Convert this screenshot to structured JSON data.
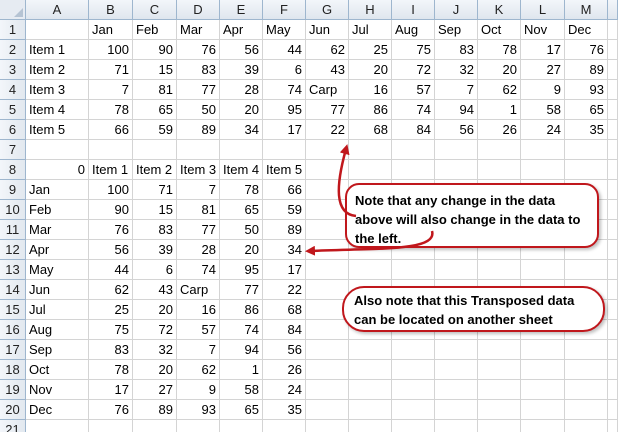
{
  "columns": [
    "A",
    "B",
    "C",
    "D",
    "E",
    "F",
    "G",
    "H",
    "I",
    "J",
    "K",
    "L",
    "M"
  ],
  "rows": [
    "1",
    "2",
    "3",
    "4",
    "5",
    "6",
    "7",
    "8",
    "9",
    "10",
    "11",
    "12",
    "13",
    "14",
    "15",
    "16",
    "17",
    "18",
    "19",
    "20",
    "21"
  ],
  "cells": [
    {
      "r": 1,
      "c": 1,
      "v": "Jan",
      "t": "s"
    },
    {
      "r": 1,
      "c": 2,
      "v": "Feb",
      "t": "s"
    },
    {
      "r": 1,
      "c": 3,
      "v": "Mar",
      "t": "s"
    },
    {
      "r": 1,
      "c": 4,
      "v": "Apr",
      "t": "s"
    },
    {
      "r": 1,
      "c": 5,
      "v": "May",
      "t": "s"
    },
    {
      "r": 1,
      "c": 6,
      "v": "Jun",
      "t": "s"
    },
    {
      "r": 1,
      "c": 7,
      "v": "Jul",
      "t": "s"
    },
    {
      "r": 1,
      "c": 8,
      "v": "Aug",
      "t": "s"
    },
    {
      "r": 1,
      "c": 9,
      "v": "Sep",
      "t": "s"
    },
    {
      "r": 1,
      "c": 10,
      "v": "Oct",
      "t": "s"
    },
    {
      "r": 1,
      "c": 11,
      "v": "Nov",
      "t": "s"
    },
    {
      "r": 1,
      "c": 12,
      "v": "Dec",
      "t": "s"
    },
    {
      "r": 2,
      "c": 0,
      "v": "Item 1",
      "t": "s"
    },
    {
      "r": 2,
      "c": 1,
      "v": "100",
      "t": "n"
    },
    {
      "r": 2,
      "c": 2,
      "v": "90",
      "t": "n"
    },
    {
      "r": 2,
      "c": 3,
      "v": "76",
      "t": "n"
    },
    {
      "r": 2,
      "c": 4,
      "v": "56",
      "t": "n"
    },
    {
      "r": 2,
      "c": 5,
      "v": "44",
      "t": "n"
    },
    {
      "r": 2,
      "c": 6,
      "v": "62",
      "t": "n"
    },
    {
      "r": 2,
      "c": 7,
      "v": "25",
      "t": "n"
    },
    {
      "r": 2,
      "c": 8,
      "v": "75",
      "t": "n"
    },
    {
      "r": 2,
      "c": 9,
      "v": "83",
      "t": "n"
    },
    {
      "r": 2,
      "c": 10,
      "v": "78",
      "t": "n"
    },
    {
      "r": 2,
      "c": 11,
      "v": "17",
      "t": "n"
    },
    {
      "r": 2,
      "c": 12,
      "v": "76",
      "t": "n"
    },
    {
      "r": 3,
      "c": 0,
      "v": "Item 2",
      "t": "s"
    },
    {
      "r": 3,
      "c": 1,
      "v": "71",
      "t": "n"
    },
    {
      "r": 3,
      "c": 2,
      "v": "15",
      "t": "n"
    },
    {
      "r": 3,
      "c": 3,
      "v": "83",
      "t": "n"
    },
    {
      "r": 3,
      "c": 4,
      "v": "39",
      "t": "n"
    },
    {
      "r": 3,
      "c": 5,
      "v": "6",
      "t": "n"
    },
    {
      "r": 3,
      "c": 6,
      "v": "43",
      "t": "n"
    },
    {
      "r": 3,
      "c": 7,
      "v": "20",
      "t": "n"
    },
    {
      "r": 3,
      "c": 8,
      "v": "72",
      "t": "n"
    },
    {
      "r": 3,
      "c": 9,
      "v": "32",
      "t": "n"
    },
    {
      "r": 3,
      "c": 10,
      "v": "20",
      "t": "n"
    },
    {
      "r": 3,
      "c": 11,
      "v": "27",
      "t": "n"
    },
    {
      "r": 3,
      "c": 12,
      "v": "89",
      "t": "n"
    },
    {
      "r": 4,
      "c": 0,
      "v": "Item 3",
      "t": "s"
    },
    {
      "r": 4,
      "c": 1,
      "v": "7",
      "t": "n"
    },
    {
      "r": 4,
      "c": 2,
      "v": "81",
      "t": "n"
    },
    {
      "r": 4,
      "c": 3,
      "v": "77",
      "t": "n"
    },
    {
      "r": 4,
      "c": 4,
      "v": "28",
      "t": "n"
    },
    {
      "r": 4,
      "c": 5,
      "v": "74",
      "t": "n"
    },
    {
      "r": 4,
      "c": 6,
      "v": "Carp",
      "t": "s"
    },
    {
      "r": 4,
      "c": 7,
      "v": "16",
      "t": "n"
    },
    {
      "r": 4,
      "c": 8,
      "v": "57",
      "t": "n"
    },
    {
      "r": 4,
      "c": 9,
      "v": "7",
      "t": "n"
    },
    {
      "r": 4,
      "c": 10,
      "v": "62",
      "t": "n"
    },
    {
      "r": 4,
      "c": 11,
      "v": "9",
      "t": "n"
    },
    {
      "r": 4,
      "c": 12,
      "v": "93",
      "t": "n"
    },
    {
      "r": 5,
      "c": 0,
      "v": "Item 4",
      "t": "s"
    },
    {
      "r": 5,
      "c": 1,
      "v": "78",
      "t": "n"
    },
    {
      "r": 5,
      "c": 2,
      "v": "65",
      "t": "n"
    },
    {
      "r": 5,
      "c": 3,
      "v": "50",
      "t": "n"
    },
    {
      "r": 5,
      "c": 4,
      "v": "20",
      "t": "n"
    },
    {
      "r": 5,
      "c": 5,
      "v": "95",
      "t": "n"
    },
    {
      "r": 5,
      "c": 6,
      "v": "77",
      "t": "n"
    },
    {
      "r": 5,
      "c": 7,
      "v": "86",
      "t": "n"
    },
    {
      "r": 5,
      "c": 8,
      "v": "74",
      "t": "n"
    },
    {
      "r": 5,
      "c": 9,
      "v": "94",
      "t": "n"
    },
    {
      "r": 5,
      "c": 10,
      "v": "1",
      "t": "n"
    },
    {
      "r": 5,
      "c": 11,
      "v": "58",
      "t": "n"
    },
    {
      "r": 5,
      "c": 12,
      "v": "65",
      "t": "n"
    },
    {
      "r": 6,
      "c": 0,
      "v": "Item 5",
      "t": "s"
    },
    {
      "r": 6,
      "c": 1,
      "v": "66",
      "t": "n"
    },
    {
      "r": 6,
      "c": 2,
      "v": "59",
      "t": "n"
    },
    {
      "r": 6,
      "c": 3,
      "v": "89",
      "t": "n"
    },
    {
      "r": 6,
      "c": 4,
      "v": "34",
      "t": "n"
    },
    {
      "r": 6,
      "c": 5,
      "v": "17",
      "t": "n"
    },
    {
      "r": 6,
      "c": 6,
      "v": "22",
      "t": "n"
    },
    {
      "r": 6,
      "c": 7,
      "v": "68",
      "t": "n"
    },
    {
      "r": 6,
      "c": 8,
      "v": "84",
      "t": "n"
    },
    {
      "r": 6,
      "c": 9,
      "v": "56",
      "t": "n"
    },
    {
      "r": 6,
      "c": 10,
      "v": "26",
      "t": "n"
    },
    {
      "r": 6,
      "c": 11,
      "v": "24",
      "t": "n"
    },
    {
      "r": 6,
      "c": 12,
      "v": "35",
      "t": "n"
    },
    {
      "r": 8,
      "c": 0,
      "v": "0",
      "t": "n"
    },
    {
      "r": 8,
      "c": 1,
      "v": "Item 1",
      "t": "s"
    },
    {
      "r": 8,
      "c": 2,
      "v": "Item 2",
      "t": "s"
    },
    {
      "r": 8,
      "c": 3,
      "v": "Item 3",
      "t": "s"
    },
    {
      "r": 8,
      "c": 4,
      "v": "Item 4",
      "t": "s"
    },
    {
      "r": 8,
      "c": 5,
      "v": "Item 5",
      "t": "s"
    },
    {
      "r": 9,
      "c": 0,
      "v": "Jan",
      "t": "s"
    },
    {
      "r": 9,
      "c": 1,
      "v": "100",
      "t": "n"
    },
    {
      "r": 9,
      "c": 2,
      "v": "71",
      "t": "n"
    },
    {
      "r": 9,
      "c": 3,
      "v": "7",
      "t": "n"
    },
    {
      "r": 9,
      "c": 4,
      "v": "78",
      "t": "n"
    },
    {
      "r": 9,
      "c": 5,
      "v": "66",
      "t": "n"
    },
    {
      "r": 10,
      "c": 0,
      "v": "Feb",
      "t": "s"
    },
    {
      "r": 10,
      "c": 1,
      "v": "90",
      "t": "n"
    },
    {
      "r": 10,
      "c": 2,
      "v": "15",
      "t": "n"
    },
    {
      "r": 10,
      "c": 3,
      "v": "81",
      "t": "n"
    },
    {
      "r": 10,
      "c": 4,
      "v": "65",
      "t": "n"
    },
    {
      "r": 10,
      "c": 5,
      "v": "59",
      "t": "n"
    },
    {
      "r": 11,
      "c": 0,
      "v": "Mar",
      "t": "s"
    },
    {
      "r": 11,
      "c": 1,
      "v": "76",
      "t": "n"
    },
    {
      "r": 11,
      "c": 2,
      "v": "83",
      "t": "n"
    },
    {
      "r": 11,
      "c": 3,
      "v": "77",
      "t": "n"
    },
    {
      "r": 11,
      "c": 4,
      "v": "50",
      "t": "n"
    },
    {
      "r": 11,
      "c": 5,
      "v": "89",
      "t": "n"
    },
    {
      "r": 12,
      "c": 0,
      "v": "Apr",
      "t": "s"
    },
    {
      "r": 12,
      "c": 1,
      "v": "56",
      "t": "n"
    },
    {
      "r": 12,
      "c": 2,
      "v": "39",
      "t": "n"
    },
    {
      "r": 12,
      "c": 3,
      "v": "28",
      "t": "n"
    },
    {
      "r": 12,
      "c": 4,
      "v": "20",
      "t": "n"
    },
    {
      "r": 12,
      "c": 5,
      "v": "34",
      "t": "n"
    },
    {
      "r": 13,
      "c": 0,
      "v": "May",
      "t": "s"
    },
    {
      "r": 13,
      "c": 1,
      "v": "44",
      "t": "n"
    },
    {
      "r": 13,
      "c": 2,
      "v": "6",
      "t": "n"
    },
    {
      "r": 13,
      "c": 3,
      "v": "74",
      "t": "n"
    },
    {
      "r": 13,
      "c": 4,
      "v": "95",
      "t": "n"
    },
    {
      "r": 13,
      "c": 5,
      "v": "17",
      "t": "n"
    },
    {
      "r": 14,
      "c": 0,
      "v": "Jun",
      "t": "s"
    },
    {
      "r": 14,
      "c": 1,
      "v": "62",
      "t": "n"
    },
    {
      "r": 14,
      "c": 2,
      "v": "43",
      "t": "n"
    },
    {
      "r": 14,
      "c": 3,
      "v": "Carp",
      "t": "s"
    },
    {
      "r": 14,
      "c": 4,
      "v": "77",
      "t": "n"
    },
    {
      "r": 14,
      "c": 5,
      "v": "22",
      "t": "n"
    },
    {
      "r": 15,
      "c": 0,
      "v": "Jul",
      "t": "s"
    },
    {
      "r": 15,
      "c": 1,
      "v": "25",
      "t": "n"
    },
    {
      "r": 15,
      "c": 2,
      "v": "20",
      "t": "n"
    },
    {
      "r": 15,
      "c": 3,
      "v": "16",
      "t": "n"
    },
    {
      "r": 15,
      "c": 4,
      "v": "86",
      "t": "n"
    },
    {
      "r": 15,
      "c": 5,
      "v": "68",
      "t": "n"
    },
    {
      "r": 16,
      "c": 0,
      "v": "Aug",
      "t": "s"
    },
    {
      "r": 16,
      "c": 1,
      "v": "75",
      "t": "n"
    },
    {
      "r": 16,
      "c": 2,
      "v": "72",
      "t": "n"
    },
    {
      "r": 16,
      "c": 3,
      "v": "57",
      "t": "n"
    },
    {
      "r": 16,
      "c": 4,
      "v": "74",
      "t": "n"
    },
    {
      "r": 16,
      "c": 5,
      "v": "84",
      "t": "n"
    },
    {
      "r": 17,
      "c": 0,
      "v": "Sep",
      "t": "s"
    },
    {
      "r": 17,
      "c": 1,
      "v": "83",
      "t": "n"
    },
    {
      "r": 17,
      "c": 2,
      "v": "32",
      "t": "n"
    },
    {
      "r": 17,
      "c": 3,
      "v": "7",
      "t": "n"
    },
    {
      "r": 17,
      "c": 4,
      "v": "94",
      "t": "n"
    },
    {
      "r": 17,
      "c": 5,
      "v": "56",
      "t": "n"
    },
    {
      "r": 18,
      "c": 0,
      "v": "Oct",
      "t": "s"
    },
    {
      "r": 18,
      "c": 1,
      "v": "78",
      "t": "n"
    },
    {
      "r": 18,
      "c": 2,
      "v": "20",
      "t": "n"
    },
    {
      "r": 18,
      "c": 3,
      "v": "62",
      "t": "n"
    },
    {
      "r": 18,
      "c": 4,
      "v": "1",
      "t": "n"
    },
    {
      "r": 18,
      "c": 5,
      "v": "26",
      "t": "n"
    },
    {
      "r": 19,
      "c": 0,
      "v": "Nov",
      "t": "s"
    },
    {
      "r": 19,
      "c": 1,
      "v": "17",
      "t": "n"
    },
    {
      "r": 19,
      "c": 2,
      "v": "27",
      "t": "n"
    },
    {
      "r": 19,
      "c": 3,
      "v": "9",
      "t": "n"
    },
    {
      "r": 19,
      "c": 4,
      "v": "58",
      "t": "n"
    },
    {
      "r": 19,
      "c": 5,
      "v": "24",
      "t": "n"
    },
    {
      "r": 20,
      "c": 0,
      "v": "Dec",
      "t": "s"
    },
    {
      "r": 20,
      "c": 1,
      "v": "76",
      "t": "n"
    },
    {
      "r": 20,
      "c": 2,
      "v": "89",
      "t": "n"
    },
    {
      "r": 20,
      "c": 3,
      "v": "93",
      "t": "n"
    },
    {
      "r": 20,
      "c": 4,
      "v": "65",
      "t": "n"
    },
    {
      "r": 20,
      "c": 5,
      "v": "35",
      "t": "n"
    }
  ],
  "notes": {
    "note1": "Note that any change in the data above will also change in the data to the left.",
    "note2": "Also note that this Transposed data can be located on another sheet"
  },
  "colors": {
    "note_border": "#c0171c",
    "arrow": "#c0171c",
    "gridline": "#d4d4d4",
    "header_border": "#9eb6ce"
  },
  "icons": {
    "select_all_corner": "select-all-triangle",
    "note_arrows": [
      "arrow-up-to-row-6",
      "arrow-left-to-row-12"
    ]
  }
}
